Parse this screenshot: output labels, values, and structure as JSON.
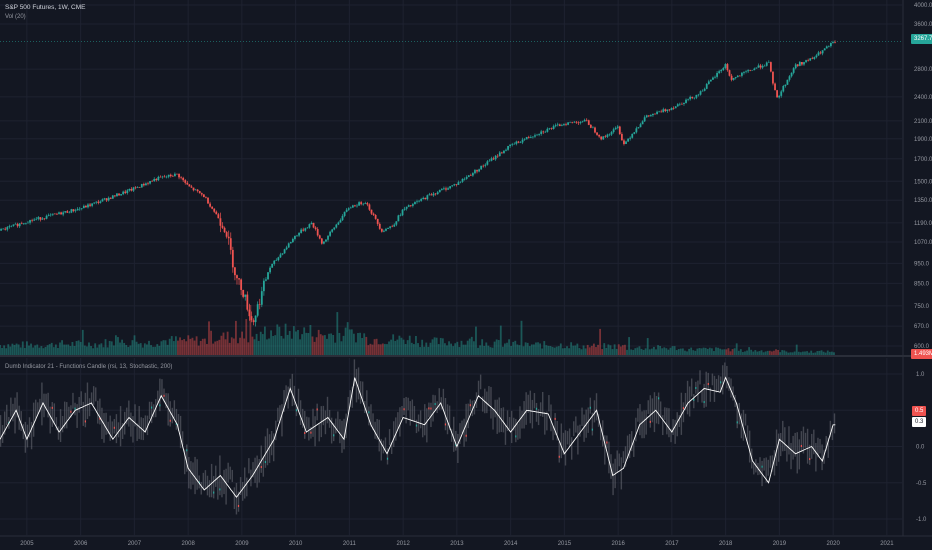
{
  "header": {
    "title": "S&P 500 Futures, 1W, CME",
    "volume_label": "Vol (20)"
  },
  "indicator": {
    "title": "Dumb Indicator 21 - Functions Candle (rsi, 13, Stochastic, 200)"
  },
  "price_tags": {
    "main_price": "3267.7",
    "volume_tag": "1.493M",
    "osc_red": "0.5",
    "osc_white": "0.3"
  },
  "colors": {
    "background": "#131722",
    "grid": "#1e2230",
    "up": "#26a69a",
    "down": "#ef5350",
    "osc_line": "#ffffff",
    "osc_cloud": "#6b6e76"
  },
  "chart_data": [
    {
      "type": "line",
      "title": "S&P 500 Futures, 1W, CME",
      "x": [
        2004.5,
        2005.0,
        2006.0,
        2007.0,
        2007.4,
        2007.8,
        2008.0,
        2008.3,
        2008.5,
        2008.7,
        2008.8,
        2008.9,
        2009.0,
        2009.2,
        2009.5,
        2010.0,
        2010.3,
        2010.5,
        2010.8,
        2011.0,
        2011.3,
        2011.6,
        2011.8,
        2012.0,
        2012.5,
        2013.0,
        2013.5,
        2014.0,
        2014.5,
        2015.0,
        2015.4,
        2015.7,
        2016.0,
        2016.1,
        2016.5,
        2017.0,
        2017.5,
        2018.0,
        2018.1,
        2018.5,
        2018.8,
        2018.95,
        2019.3,
        2019.6,
        2020.0,
        2020.05
      ],
      "values": [
        1140,
        1200,
        1290,
        1440,
        1520,
        1560,
        1460,
        1380,
        1260,
        1150,
        1000,
        870,
        830,
        680,
        920,
        1110,
        1190,
        1060,
        1200,
        1300,
        1340,
        1140,
        1170,
        1280,
        1390,
        1480,
        1640,
        1830,
        1960,
        2070,
        2100,
        1900,
        2030,
        1840,
        2140,
        2260,
        2440,
        2870,
        2640,
        2800,
        2900,
        2370,
        2860,
        2960,
        3240,
        3268
      ],
      "y_ticks": [
        600,
        670,
        750,
        850,
        950,
        1070,
        1190,
        1350,
        1500,
        1700,
        1900,
        2100,
        2400,
        2800,
        3600,
        4000
      ],
      "y_tick_labels": [
        "600.0",
        "670.0",
        "750.0",
        "850.0",
        "950.0",
        "1070.0",
        "1190.0",
        "1350.0",
        "1500.0",
        "1700.0",
        "1900.0",
        "2100.0",
        "2400.0",
        "2800.0",
        "3600.0",
        "4000.0"
      ],
      "scale": "log",
      "grid": true
    },
    {
      "type": "bar",
      "title": "Vol (20)",
      "note": "weekly volume bars, relative scale, high in 2008-2009 then declining",
      "x_start": 2004.5,
      "x_end": 2020.05,
      "relative_levels": [
        0.35,
        0.38,
        0.42,
        0.5,
        0.62,
        0.8,
        0.7,
        0.55,
        0.45,
        0.4,
        0.35,
        0.3,
        0.25,
        0.2,
        0.15,
        0.12,
        0.1
      ]
    },
    {
      "type": "line",
      "title": "Dumb Indicator 21 - Functions Candle (rsi, 13, Stochastic, 200)",
      "x": [
        2004.5,
        2004.8,
        2005.0,
        2005.3,
        2005.6,
        2005.9,
        2006.2,
        2006.6,
        2006.9,
        2007.2,
        2007.5,
        2007.8,
        2008.0,
        2008.3,
        2008.6,
        2008.9,
        2009.2,
        2009.6,
        2009.9,
        2010.2,
        2010.6,
        2010.9,
        2011.1,
        2011.4,
        2011.7,
        2012.0,
        2012.4,
        2012.7,
        2013.0,
        2013.4,
        2013.7,
        2014.0,
        2014.3,
        2014.7,
        2015.0,
        2015.3,
        2015.6,
        2015.9,
        2016.1,
        2016.4,
        2016.7,
        2017.0,
        2017.3,
        2017.6,
        2017.9,
        2018.0,
        2018.2,
        2018.5,
        2018.8,
        2019.0,
        2019.3,
        2019.6,
        2019.8,
        2020.0
      ],
      "values": [
        0.1,
        0.5,
        0.1,
        0.6,
        0.2,
        0.5,
        0.6,
        0.1,
        0.4,
        0.2,
        0.7,
        0.3,
        -0.3,
        -0.6,
        -0.4,
        -0.7,
        -0.4,
        0.1,
        0.8,
        0.2,
        0.4,
        0.1,
        0.95,
        0.3,
        -0.1,
        0.4,
        0.3,
        0.6,
        0.0,
        0.7,
        0.5,
        0.2,
        0.5,
        0.45,
        -0.1,
        0.2,
        0.5,
        -0.4,
        -0.3,
        0.3,
        0.5,
        0.2,
        0.6,
        0.8,
        0.75,
        0.95,
        0.6,
        -0.2,
        -0.5,
        0.1,
        -0.1,
        0.0,
        -0.2,
        0.3
      ],
      "y_ticks": [
        1.0,
        0.5,
        0.0,
        -0.5,
        -1.0
      ],
      "y_tick_labels": [
        "1.0",
        "0.5",
        "0.0",
        "-0.5",
        "-1.0"
      ],
      "grid": true
    }
  ],
  "x_axis": {
    "ticks": [
      2005,
      2006,
      2007,
      2008,
      2009,
      2010,
      2011,
      2012,
      2013,
      2014,
      2015,
      2016,
      2017,
      2018,
      2019,
      2020,
      2021
    ],
    "labels": [
      "2005",
      "2006",
      "2007",
      "2008",
      "2009",
      "2010",
      "2011",
      "2012",
      "2013",
      "2014",
      "2015",
      "2016",
      "2017",
      "2018",
      "2019",
      "2020",
      "2021"
    ]
  }
}
